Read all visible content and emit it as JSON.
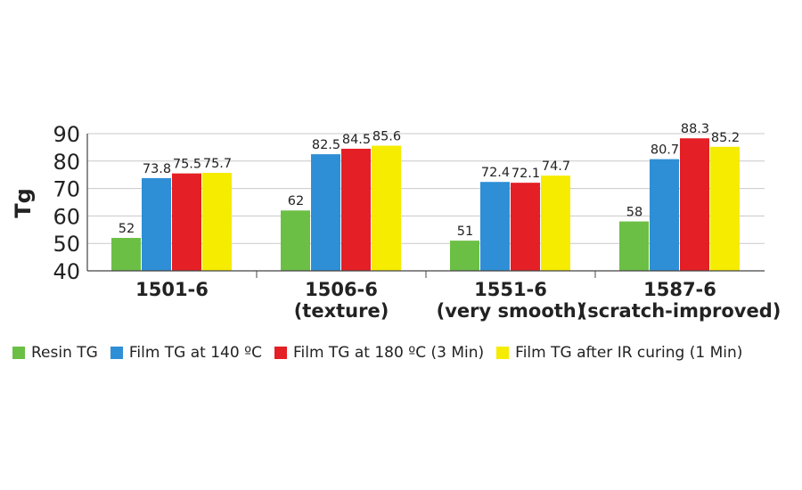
{
  "chart_data": {
    "type": "bar",
    "title": "",
    "xlabel": "",
    "ylabel": "Tg",
    "ylim": [
      40,
      90
    ],
    "yticks": [
      40,
      50,
      60,
      70,
      80,
      90
    ],
    "grid": true,
    "legend_position": "bottom",
    "categories": [
      {
        "line1": "1501-6",
        "line2": ""
      },
      {
        "line1": "1506-6",
        "line2": "(texture)"
      },
      {
        "line1": "1551-6",
        "line2": "(very smooth)"
      },
      {
        "line1": "1587-6",
        "line2": "(scratch-improved)"
      }
    ],
    "series": [
      {
        "name": "Resin TG",
        "color": "#6cbf45",
        "values": [
          52,
          62,
          51,
          58
        ],
        "labels": [
          "52",
          "62",
          "51",
          "58"
        ]
      },
      {
        "name": "Film TG at 140 ºC",
        "color": "#2f8fd6",
        "values": [
          73.8,
          82.5,
          72.4,
          80.7
        ],
        "labels": [
          "73.8",
          "82.5",
          "72.4",
          "80.7"
        ]
      },
      {
        "name": "Film TG at 180 ºC (3 Min)",
        "color": "#e41f26",
        "values": [
          75.5,
          84.5,
          72.1,
          88.3
        ],
        "labels": [
          "75.5",
          "84.5",
          "72.1",
          "88.3"
        ]
      },
      {
        "name": "Film TG after IR curing (1 Min)",
        "color": "#f5ec00",
        "values": [
          75.7,
          85.6,
          74.7,
          85.2
        ],
        "labels": [
          "75.7",
          "85.6",
          "74.7",
          "85.2"
        ]
      }
    ]
  }
}
